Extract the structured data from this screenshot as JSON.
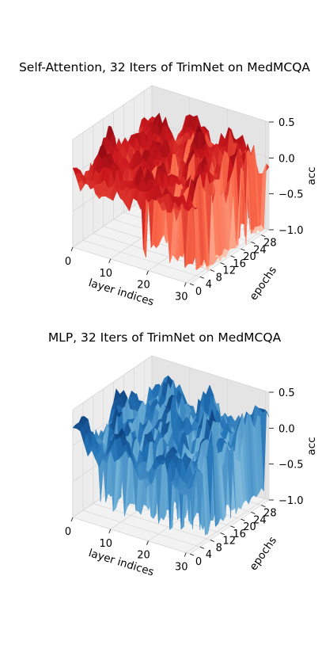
{
  "chart_data": [
    {
      "type": "surface3d",
      "title": "Self-Attention, 32 Iters of TrimNet on MedMCQA",
      "xlabel": "layer indices",
      "ylabel": "epochs",
      "zlabel": "acc",
      "xticks": [
        "0",
        "10",
        "20",
        "30"
      ],
      "yticks": [
        "0",
        "4",
        "8",
        "12",
        "16",
        "20",
        "24",
        "28"
      ],
      "zticks": [
        "0.5",
        "0.0",
        "−0.5",
        "−1.0"
      ],
      "xlim": [
        0,
        31
      ],
      "ylim": [
        0,
        31
      ],
      "zlim": [
        -1.0,
        0.5
      ],
      "colormap": "Reds",
      "drop_layers": [
        16,
        23,
        27,
        30,
        31
      ],
      "drop_value": -1.0,
      "base_level": 0.0,
      "grid": true
    },
    {
      "type": "surface3d",
      "title": "MLP, 32 Iters of TrimNet on MedMCQA",
      "xlabel": "layer indices",
      "ylabel": "epochs",
      "zlabel": "acc",
      "xticks": [
        "0",
        "10",
        "20",
        "30"
      ],
      "yticks": [
        "0",
        "4",
        "8",
        "12",
        "16",
        "20",
        "24",
        "28"
      ],
      "zticks": [
        "0.5",
        "0.0",
        "−0.5",
        "−1.0"
      ],
      "xlim": [
        0,
        31
      ],
      "ylim": [
        0,
        31
      ],
      "zlim": [
        -1.0,
        0.5
      ],
      "colormap": "Blues",
      "drop_layers": [
        4,
        8,
        11,
        14,
        18,
        20,
        23,
        26,
        29,
        31
      ],
      "drop_value": -0.9,
      "base_level": 0.05,
      "grid": true
    }
  ]
}
